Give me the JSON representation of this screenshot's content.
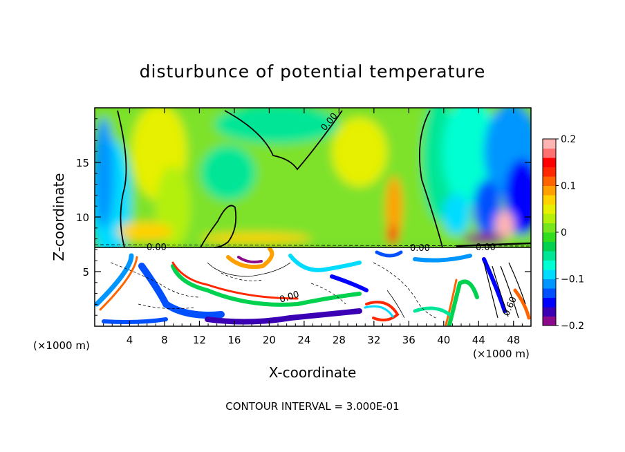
{
  "chart_data": {
    "type": "heatmap",
    "title": "disturbunce of potential temperature",
    "xlabel": "X-coordinate",
    "ylabel": "Z-coordinate",
    "x_unit": "(×1000 m)",
    "x_unit_left": "(×1000 m)",
    "xlim": [
      0,
      50
    ],
    "ylim": [
      0,
      20
    ],
    "x_ticks": [
      4,
      8,
      12,
      16,
      20,
      24,
      28,
      32,
      36,
      40,
      44,
      48
    ],
    "y_ticks": [
      5,
      10,
      15
    ],
    "colorbar": {
      "range": [
        -0.2,
        0.2
      ],
      "tick_labels": [
        "0.2",
        "0.1",
        "0",
        "−0.1",
        "−0.2"
      ],
      "tick_values": [
        0.2,
        0.1,
        0,
        -0.1,
        -0.2
      ],
      "colors": [
        "#8b0a8b",
        "#3c00b4",
        "#0000ff",
        "#0050ff",
        "#0096ff",
        "#00dcff",
        "#00ffd2",
        "#00e696",
        "#00d250",
        "#32dc1e",
        "#78e61e",
        "#b4f00a",
        "#e6f000",
        "#ffd200",
        "#ffa000",
        "#ff6400",
        "#ff2800",
        "#ff0000",
        "#ff7070",
        "#ffb4b4"
      ]
    },
    "contour_labels": [
      "0.00",
      "0.00",
      "0.00",
      "0.00",
      "0.00",
      "0.60"
    ],
    "footer": "CONTOUR INTERVAL = 3.000E-01"
  }
}
